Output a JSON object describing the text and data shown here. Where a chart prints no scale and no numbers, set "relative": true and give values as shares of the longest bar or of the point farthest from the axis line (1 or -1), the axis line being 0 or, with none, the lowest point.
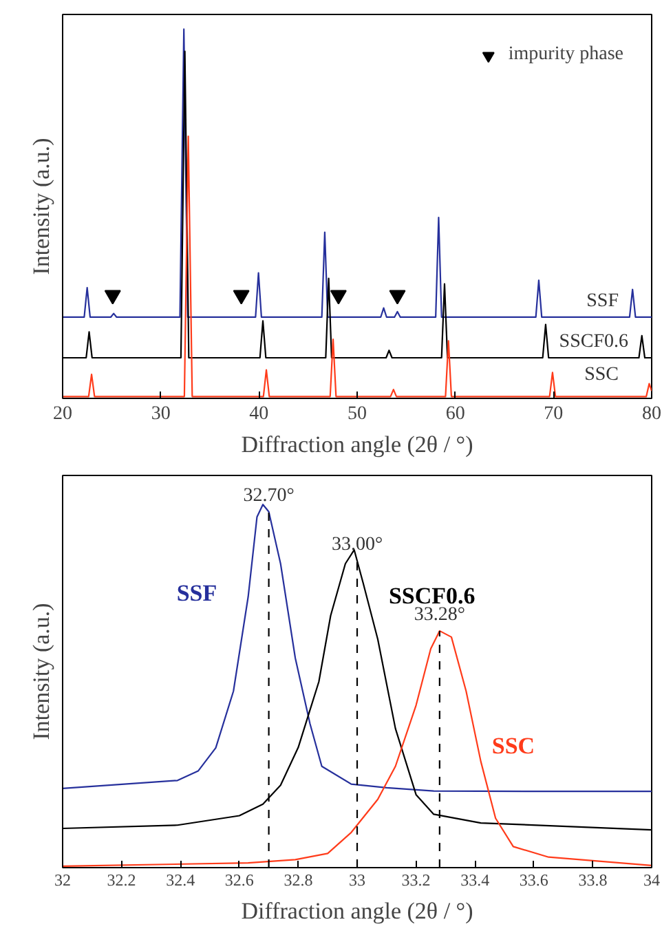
{
  "chart_data": [
    {
      "type": "line",
      "xlabel": "Diffraction angle (2θ / °)",
      "ylabel": "Intensity (a.u.)",
      "relative": true,
      "tick_labels": "x",
      "xlim": [
        20,
        80
      ],
      "xticks": [
        20,
        30,
        40,
        50,
        60,
        70,
        80
      ],
      "legend": "top right",
      "grid": false,
      "series": [
        {
          "name": "SSF",
          "color": "#26309c",
          "x": [
            20,
            22.2,
            22.5,
            22.8,
            24.9,
            25.2,
            25.5,
            31.95,
            32.35,
            32.75,
            39.65,
            39.95,
            40.25,
            46.4,
            46.7,
            47.0,
            52.4,
            52.7,
            53.0,
            53.8,
            54.1,
            54.4,
            58.0,
            58.3,
            58.6,
            68.2,
            68.5,
            68.8,
            77.75,
            78.05,
            78.35,
            80
          ],
          "values": [
            0.22,
            0.22,
            0.3,
            0.22,
            0.22,
            0.23,
            0.22,
            0.22,
            1.0,
            0.22,
            0.22,
            0.34,
            0.22,
            0.22,
            0.45,
            0.22,
            0.22,
            0.245,
            0.22,
            0.22,
            0.235,
            0.22,
            0.22,
            0.49,
            0.22,
            0.22,
            0.32,
            0.22,
            0.22,
            0.295,
            0.22,
            0.22
          ]
        },
        {
          "name": "SSCF0.6",
          "color": "#000000",
          "x": [
            20,
            22.4,
            22.7,
            23.0,
            32.05,
            32.45,
            32.85,
            40.1,
            40.4,
            40.7,
            46.8,
            47.1,
            47.4,
            52.95,
            53.25,
            53.55,
            58.6,
            58.9,
            59.2,
            68.9,
            69.2,
            69.5,
            78.7,
            79.0,
            79.3,
            80
          ],
          "values": [
            0.11,
            0.11,
            0.18,
            0.11,
            0.11,
            0.94,
            0.11,
            0.11,
            0.21,
            0.11,
            0.11,
            0.325,
            0.11,
            0.11,
            0.13,
            0.11,
            0.11,
            0.31,
            0.11,
            0.11,
            0.2,
            0.11,
            0.11,
            0.17,
            0.11,
            0.11
          ]
        },
        {
          "name": "SSC",
          "color": "#ff3b1a",
          "x": [
            20,
            22.65,
            22.95,
            23.25,
            32.4,
            32.8,
            33.2,
            40.45,
            40.75,
            41.05,
            47.25,
            47.55,
            47.85,
            53.4,
            53.7,
            54.0,
            59.0,
            59.3,
            59.6,
            69.6,
            69.9,
            70.2,
            79.45,
            79.75,
            80
          ],
          "values": [
            0.005,
            0.005,
            0.065,
            0.005,
            0.005,
            0.71,
            0.005,
            0.005,
            0.077,
            0.005,
            0.005,
            0.16,
            0.005,
            0.005,
            0.024,
            0.005,
            0.005,
            0.156,
            0.005,
            0.005,
            0.07,
            0.005,
            0.005,
            0.04,
            0.02
          ]
        },
        {
          "name": "impurity phase",
          "type": "scatter",
          "marker": "triangle",
          "color": "#000000",
          "x": [
            25.1,
            38.2,
            48.1,
            54.1
          ],
          "values": [
            0.28,
            0.28,
            0.28,
            0.28
          ]
        }
      ]
    },
    {
      "type": "line",
      "xlabel": "Diffraction angle (2θ / °)",
      "ylabel": "Intensity (a.u.)",
      "relative": true,
      "tick_labels": "x",
      "xlim": [
        32,
        34
      ],
      "xticks": [
        32,
        32.2,
        32.4,
        32.6,
        32.8,
        33,
        33.2,
        33.4,
        33.6,
        33.8,
        34
      ],
      "grid": false,
      "series": [
        {
          "name": "SSF",
          "color": "#26309c",
          "x": [
            32.0,
            32.39,
            32.46,
            32.52,
            32.58,
            32.63,
            32.66,
            32.68,
            32.7,
            32.74,
            32.79,
            32.84,
            32.88,
            32.98,
            33.1,
            33.26,
            33.58,
            34.0
          ],
          "values": [
            0.218,
            0.24,
            0.266,
            0.33,
            0.486,
            0.746,
            0.966,
            1.0,
            0.98,
            0.837,
            0.577,
            0.396,
            0.279,
            0.23,
            0.22,
            0.211,
            0.21,
            0.21
          ]
        },
        {
          "name": "SSCF0.6",
          "color": "#000000",
          "x": [
            32.0,
            32.39,
            32.6,
            32.68,
            32.74,
            32.8,
            32.87,
            32.91,
            32.96,
            32.99,
            33.02,
            33.07,
            33.13,
            33.2,
            33.26,
            33.42,
            34.0
          ],
          "values": [
            0.108,
            0.117,
            0.143,
            0.175,
            0.227,
            0.331,
            0.512,
            0.694,
            0.837,
            0.875,
            0.785,
            0.629,
            0.383,
            0.201,
            0.147,
            0.123,
            0.104
          ]
        },
        {
          "name": "SSC",
          "color": "#ff3b1a",
          "x": [
            32.0,
            32.63,
            32.79,
            32.9,
            32.98,
            33.07,
            33.13,
            33.2,
            33.25,
            33.28,
            33.32,
            33.37,
            33.42,
            33.47,
            33.53,
            33.65,
            34.0
          ],
          "values": [
            0.004,
            0.013,
            0.022,
            0.039,
            0.097,
            0.188,
            0.279,
            0.447,
            0.603,
            0.652,
            0.635,
            0.486,
            0.292,
            0.136,
            0.058,
            0.029,
            0.006
          ]
        }
      ],
      "ref_lines": [
        {
          "axis": "x",
          "value": 32.7,
          "label": "32.70°",
          "line_style": "dashed"
        },
        {
          "axis": "x",
          "value": 33.0,
          "label": "33.00°",
          "line_style": "dashed"
        },
        {
          "axis": "x",
          "value": 33.28,
          "label": "33.28°",
          "line_style": "dashed"
        }
      ]
    }
  ]
}
